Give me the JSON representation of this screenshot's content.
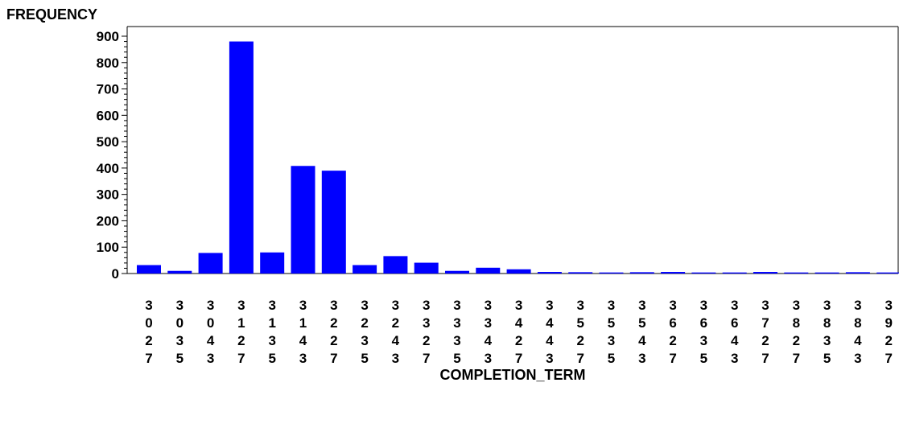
{
  "chart_data": {
    "type": "bar",
    "ylabel": "FREQUENCY",
    "xlabel": "COMPLETION_TERM",
    "ylim": [
      0,
      900
    ],
    "yticks": [
      "0",
      "100",
      "200",
      "300",
      "400",
      "500",
      "600",
      "700",
      "800",
      "900"
    ],
    "categories": [
      "3027",
      "3035",
      "3043",
      "3127",
      "3135",
      "3143",
      "3227",
      "3235",
      "3243",
      "3327",
      "3335",
      "3343",
      "3427",
      "3443",
      "3527",
      "3535",
      "3543",
      "3627",
      "3635",
      "3643",
      "3727",
      "3827",
      "3835",
      "3843",
      "3927"
    ],
    "values": [
      32,
      10,
      78,
      880,
      80,
      408,
      390,
      32,
      66,
      41,
      10,
      22,
      16,
      6,
      5,
      4,
      5,
      6,
      4,
      4,
      6,
      4,
      4,
      5,
      4
    ],
    "bar_color": "#0000ff",
    "grid": false
  }
}
